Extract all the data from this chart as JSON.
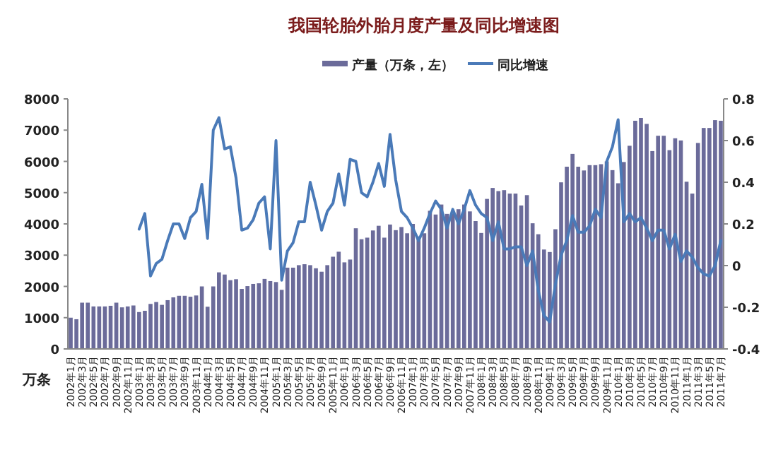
{
  "chart_data": {
    "type": "bar",
    "title": "我国轮胎外胎月度产量及同比增速图",
    "ylabel": "万条",
    "legend": "top",
    "grid": false,
    "categories": [
      "2002年1月",
      null,
      "2002年3月",
      null,
      "2002年5月",
      null,
      "2002年7月",
      null,
      "2002年9月",
      null,
      "2002年11月",
      null,
      "2003年1月",
      null,
      "2003年3月",
      null,
      "2003年5月",
      null,
      "2003年7月",
      null,
      "2003年9月",
      null,
      "2003年11月",
      null,
      "2004年1月",
      null,
      "2004年3月",
      null,
      "2004年5月",
      null,
      "2004年7月",
      null,
      "2004年9月",
      null,
      "2004年11月",
      null,
      "2005年1月",
      null,
      "2005年3月",
      null,
      "2005年5月",
      null,
      "2005年7月",
      null,
      "2005年9月",
      null,
      "2005年11月",
      null,
      "2006年1月",
      null,
      "2006年3月",
      null,
      "2006年5月",
      null,
      "2006年7月",
      null,
      "2006年9月",
      null,
      "2006年11月",
      null,
      "2007年1月",
      null,
      "2007年3月",
      null,
      "2007年5月",
      null,
      "2007年7月",
      null,
      "2007年9月",
      null,
      "2007年11月",
      null,
      "2008年1月",
      null,
      "2008年3月",
      null,
      "2008年5月",
      null,
      "2008年7月",
      null,
      "2008年9月",
      null,
      "2008年11月",
      null,
      "2009年1月",
      null,
      "2009年3月",
      null,
      "2009年5月",
      null,
      "2009年7月",
      null,
      "2009年9月",
      null,
      "2009年11月",
      null,
      "2010年1月",
      null,
      "2010年3月",
      null,
      "2010年5月",
      null,
      "2010年7月",
      null,
      "2010年9月",
      null,
      "2010年11月",
      null,
      "2011年1月",
      null,
      "2011年3月",
      null,
      "2011年5月",
      null,
      "2011年7月"
    ],
    "series": [
      {
        "name": "产量（万条，左）",
        "color": "#6b6b9a",
        "values": [
          1000,
          950,
          1480,
          1480,
          1360,
          1360,
          1360,
          1380,
          1480,
          1330,
          1360,
          1390,
          1180,
          1220,
          1440,
          1500,
          1410,
          1560,
          1650,
          1700,
          1700,
          1670,
          1710,
          2000,
          1350,
          2000,
          2450,
          2380,
          2200,
          2230,
          1920,
          2010,
          2080,
          2100,
          2240,
          2170,
          2140,
          1890,
          2600,
          2600,
          2680,
          2710,
          2680,
          2580,
          2470,
          2680,
          2950,
          3110,
          2770,
          2860,
          3860,
          3510,
          3560,
          3790,
          3940,
          3560,
          3980,
          3800,
          3900,
          3700,
          4000,
          3600,
          3700,
          4420,
          4300,
          4620,
          4320,
          4320,
          4470,
          4620,
          4400,
          4090,
          3710,
          4800,
          5150,
          5050,
          5080,
          4970,
          4970,
          4590,
          4920,
          4020,
          3670,
          3180,
          3100,
          3830,
          5330,
          5830,
          6240,
          5830,
          5710,
          5880,
          5880,
          5910,
          6000,
          5720,
          5300,
          5980,
          6500,
          7300,
          7390,
          7200,
          6330,
          6820,
          6820,
          6360,
          6740,
          6670,
          5350,
          4970,
          6590,
          7070,
          7070,
          7320,
          7300
        ]
      },
      {
        "name": "同比增速",
        "type": "line",
        "axis": "y2",
        "color": "#4a7ab8",
        "values": [
          null,
          null,
          null,
          null,
          null,
          null,
          null,
          null,
          null,
          null,
          null,
          null,
          0.175,
          0.25,
          -0.05,
          0.01,
          0.03,
          0.12,
          0.2,
          0.2,
          0.13,
          0.23,
          0.26,
          0.39,
          0.13,
          0.65,
          0.71,
          0.56,
          0.57,
          0.42,
          0.17,
          0.18,
          0.22,
          0.3,
          0.33,
          0.08,
          0.6,
          -0.07,
          0.07,
          0.11,
          0.21,
          0.21,
          0.4,
          0.29,
          0.17,
          0.26,
          0.3,
          0.44,
          0.29,
          0.51,
          0.5,
          0.35,
          0.33,
          0.4,
          0.49,
          0.38,
          0.63,
          0.41,
          0.26,
          0.23,
          0.18,
          0.12,
          0.18,
          0.25,
          0.31,
          0.27,
          0.18,
          0.27,
          0.2,
          0.27,
          0.36,
          0.29,
          0.25,
          0.23,
          0.12,
          0.21,
          0.08,
          0.08,
          0.09,
          0.09,
          0,
          0.07,
          -0.12,
          -0.24,
          -0.27,
          -0.09,
          0.05,
          0.12,
          0.24,
          0.16,
          0.16,
          0.19,
          0.27,
          0.23,
          0.5,
          0.57,
          0.7,
          0.21,
          0.25,
          0.21,
          0.23,
          0.18,
          0.12,
          0.17,
          0.17,
          0.08,
          0.15,
          0.02,
          0.07,
          0.04,
          -0.01,
          -0.04,
          -0.05,
          0,
          0.12
        ]
      }
    ],
    "ylim": [
      0,
      8000
    ],
    "yticks": [
      0,
      1000,
      2000,
      3000,
      4000,
      5000,
      6000,
      7000,
      8000
    ],
    "y2lim": [
      -0.4,
      0.8
    ],
    "y2ticks": [
      -0.4,
      -0.2,
      0,
      0.2,
      0.4,
      0.6,
      0.8
    ]
  }
}
